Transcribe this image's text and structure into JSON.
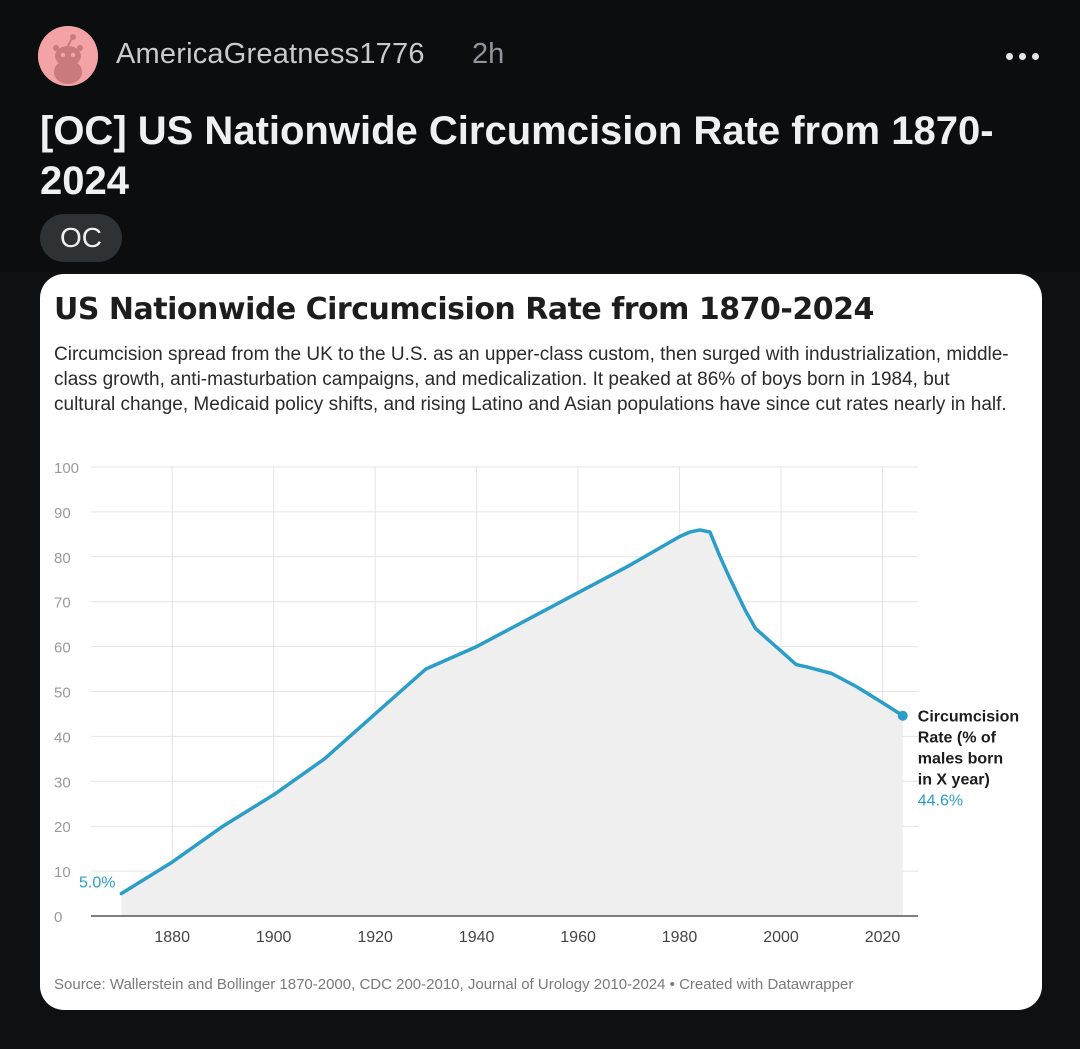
{
  "post": {
    "username": "AmericaGreatness1776",
    "age": "2h",
    "title": "[OC] US Nationwide Circumcision Rate from 1870-2024",
    "flair": "OC"
  },
  "colors": {
    "line": "#2a9dc8",
    "area": "#efefef",
    "background": "#0b0d0f"
  },
  "icons": {
    "avatar": "reddit-snoo-avatar",
    "more": "more-options-icon"
  },
  "chart_data": {
    "type": "line",
    "title": "US Nationwide Circumcision Rate from 1870-2024",
    "subtitle": "Circumcision spread from the UK to the U.S. as an upper-class custom, then surged with industrialization, middle-class growth, anti-masturbation campaigns, and medicalization. It peaked at 86% of boys born in 1984, but cultural change, Medicaid policy shifts, and rising Latino and Asian populations have since cut rates nearly in half.",
    "xlabel": "",
    "ylabel": "",
    "xlim": [
      1864,
      2027
    ],
    "ylim": [
      0,
      100
    ],
    "yticks": [
      0,
      10,
      20,
      30,
      40,
      50,
      60,
      70,
      80,
      90,
      100
    ],
    "xticks": [
      1880,
      1900,
      1920,
      1940,
      1960,
      1980,
      2000,
      2020
    ],
    "grid": true,
    "series": [
      {
        "name": "Circumcision Rate (% of males born in X year)",
        "x": [
          1870,
          1880,
          1890,
          1900,
          1910,
          1920,
          1930,
          1940,
          1950,
          1960,
          1970,
          1980,
          1982,
          1984,
          1986,
          1988,
          1990,
          1993,
          1995,
          2000,
          2003,
          2005,
          2010,
          2015,
          2020,
          2024
        ],
        "values": [
          5.0,
          12,
          20,
          27,
          35,
          45,
          55,
          60,
          66,
          72,
          78,
          84.5,
          85.5,
          86,
          85.5,
          80,
          75,
          68,
          64,
          59,
          56,
          55.5,
          54,
          51,
          47.5,
          44.6
        ]
      }
    ],
    "start_label": "5.0%",
    "end_label": {
      "lines": [
        "Circumcision",
        "Rate (% of",
        "males born",
        "in X year)"
      ],
      "value": "44.6%"
    },
    "source": "Source: Wallerstein and Bollinger 1870-2000, CDC 200-2010, Journal of Urology 2010-2024 • Created with Datawrapper"
  }
}
